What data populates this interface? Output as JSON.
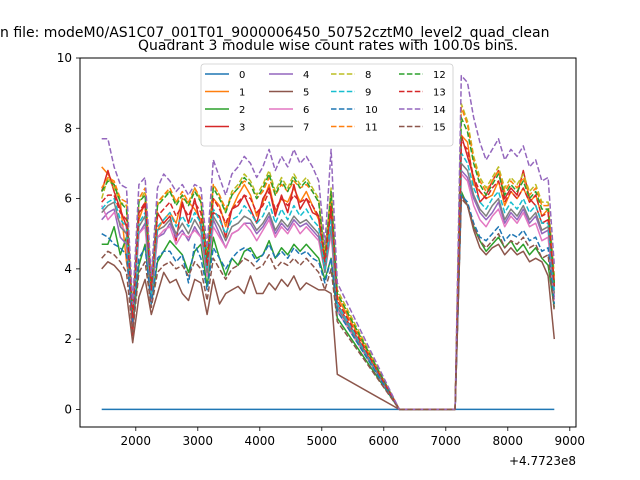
{
  "chart_data": {
    "type": "line",
    "suptitle": "n file: modeM0/AS1C07_001T01_9000006450_50752cztM0_level2_quad_clean",
    "title": "Quadrant 3 module wise count rates with 100.0s bins.",
    "xlabel": "",
    "ylabel": "",
    "offset_label": "+4.7723e8",
    "xlim": [
      1100,
      9100
    ],
    "ylim": [
      -0.5,
      10
    ],
    "xticks": [
      2000,
      3000,
      4000,
      5000,
      6000,
      7000,
      8000,
      9000
    ],
    "yticks": [
      0,
      2,
      4,
      6,
      8,
      10
    ],
    "grid": false,
    "legend_position": "top-center",
    "legend_columns": 4,
    "active_x_start": 1450,
    "bin_width": 100,
    "n_active_bins": 48,
    "gap_x": [
      6250,
      7150
    ],
    "resume_x_start": 7250,
    "n_resume_bins": 16,
    "series": [
      {
        "name": "0",
        "color": "#1f77b4",
        "dash": "solid",
        "values": [
          0,
          0,
          0,
          0,
          0,
          0,
          0,
          0,
          0,
          0,
          0,
          0,
          0,
          0,
          0,
          0,
          0,
          0,
          0,
          0,
          0,
          0,
          0,
          0,
          0,
          0,
          0,
          0,
          0,
          0,
          0,
          0,
          0,
          0,
          0,
          0,
          0,
          0,
          0,
          0,
          0,
          0,
          0,
          0,
          0,
          0,
          0,
          0,
          0,
          0,
          0,
          0,
          0,
          0,
          0,
          0,
          0,
          0,
          0,
          0,
          0,
          0,
          0,
          0
        ]
      },
      {
        "name": "1",
        "color": "#ff7f0e",
        "dash": "solid",
        "values": [
          6.9,
          6.7,
          6.4,
          5.9,
          4.2,
          3.0,
          5.4,
          5.9,
          3.5,
          5.1,
          5.4,
          5.6,
          5.3,
          6.0,
          5.9,
          5.7,
          5.4,
          4.0,
          6.0,
          5.8,
          5.2,
          5.7,
          6.1,
          6.4,
          6.1,
          5.5,
          5.9,
          6.4,
          5.6,
          6.0,
          5.9,
          6.3,
          5.9,
          6.2,
          5.8,
          5.4,
          4.2,
          5.9,
          3.2,
          0,
          0,
          0,
          0,
          0,
          0,
          0,
          0,
          0,
          7.8,
          7.6,
          6.4,
          6.2,
          6.0,
          6.1,
          6.5,
          5.8,
          6.2,
          6.0,
          6.3,
          5.9,
          6.1,
          5.5,
          5.7,
          3.6
        ]
      },
      {
        "name": "2",
        "color": "#2ca02c",
        "dash": "solid",
        "values": [
          4.7,
          4.7,
          5.2,
          4.4,
          4.9,
          2.3,
          4.1,
          4.7,
          3.0,
          4.2,
          4.5,
          4.8,
          4.6,
          4.4,
          3.9,
          4.5,
          4.7,
          3.5,
          4.9,
          4.3,
          3.8,
          4.3,
          4.1,
          4.5,
          4.6,
          4.3,
          4.4,
          4.8,
          4.3,
          4.6,
          4.4,
          4.7,
          4.5,
          4.7,
          4.5,
          4.3,
          3.7,
          4.3,
          2.6,
          0,
          0,
          0,
          0,
          0,
          0,
          0,
          0,
          0,
          6.2,
          5.8,
          5.2,
          4.8,
          4.5,
          4.7,
          4.9,
          4.6,
          4.8,
          4.5,
          4.7,
          4.4,
          4.6,
          4.3,
          4.1,
          2.9
        ]
      },
      {
        "name": "3",
        "color": "#d62728",
        "dash": "solid",
        "values": [
          6.2,
          6.8,
          6.2,
          5.7,
          5.2,
          2.1,
          5.6,
          5.8,
          3.3,
          5.6,
          5.3,
          5.5,
          4.8,
          5.9,
          5.3,
          6.0,
          5.2,
          4.1,
          5.6,
          5.5,
          4.9,
          5.7,
          5.8,
          6.1,
          5.7,
          5.3,
          6.0,
          6.3,
          5.5,
          6.1,
          5.6,
          6.4,
          5.7,
          6.0,
          5.6,
          5.5,
          4.1,
          5.7,
          3.0,
          0,
          0,
          0,
          0,
          0,
          0,
          0,
          0,
          0,
          7.8,
          7.2,
          6.6,
          5.9,
          6.1,
          6.5,
          6.8,
          6.0,
          6.3,
          6.1,
          6.8,
          6.0,
          5.8,
          5.3,
          5.4,
          3.5
        ]
      },
      {
        "name": "4",
        "color": "#9467bd",
        "dash": "solid",
        "values": [
          5.4,
          5.6,
          5.7,
          4.9,
          4.7,
          2.4,
          5.0,
          5.3,
          3.2,
          4.9,
          5.0,
          5.3,
          4.9,
          5.1,
          4.8,
          5.2,
          4.9,
          3.8,
          5.4,
          5.0,
          4.6,
          5.0,
          5.1,
          5.3,
          5.3,
          5.0,
          5.2,
          5.5,
          5.0,
          5.3,
          5.1,
          5.4,
          5.2,
          5.3,
          5.1,
          4.9,
          3.9,
          5.1,
          2.9,
          0,
          0,
          0,
          0,
          0,
          0,
          0,
          0,
          0,
          6.8,
          6.6,
          6.0,
          5.6,
          5.4,
          5.6,
          5.9,
          5.3,
          5.6,
          5.4,
          5.7,
          5.3,
          5.5,
          5.0,
          5.1,
          3.2
        ]
      },
      {
        "name": "5",
        "color": "#8c564b",
        "dash": "solid",
        "values": [
          4.0,
          4.2,
          4.1,
          3.9,
          3.3,
          1.9,
          3.2,
          3.7,
          2.7,
          3.3,
          3.9,
          3.6,
          3.7,
          3.3,
          3.1,
          3.7,
          3.6,
          2.7,
          3.7,
          3.0,
          3.3,
          3.4,
          3.5,
          3.3,
          3.8,
          3.3,
          3.3,
          3.6,
          3.4,
          3.7,
          3.5,
          3.8,
          3.4,
          3.6,
          3.5,
          3.4,
          3.4,
          3.3,
          1.0,
          0,
          0,
          0,
          0,
          0,
          0,
          0,
          0,
          0,
          6.1,
          5.8,
          5.1,
          4.6,
          4.4,
          4.6,
          4.7,
          4.4,
          4.6,
          4.4,
          4.5,
          4.2,
          4.3,
          4.2,
          3.8,
          2.0
        ]
      },
      {
        "name": "6",
        "color": "#e377c2",
        "dash": "solid",
        "values": [
          5.8,
          5.4,
          5.6,
          5.3,
          5.0,
          2.6,
          5.0,
          5.2,
          3.1,
          4.9,
          5.1,
          5.2,
          4.7,
          5.0,
          4.9,
          5.1,
          4.9,
          3.8,
          5.2,
          4.9,
          4.6,
          5.0,
          5.1,
          5.3,
          5.1,
          4.8,
          5.1,
          5.4,
          4.9,
          5.2,
          5.0,
          5.3,
          5.0,
          5.2,
          5.0,
          4.8,
          3.9,
          5.0,
          2.8,
          0,
          0,
          0,
          0,
          0,
          0,
          0,
          0,
          0,
          6.7,
          6.5,
          5.8,
          5.4,
          5.2,
          5.5,
          5.7,
          5.2,
          5.5,
          5.3,
          5.6,
          5.2,
          5.3,
          4.8,
          4.9,
          3.1
        ]
      },
      {
        "name": "7",
        "color": "#7f7f7f",
        "dash": "solid",
        "values": [
          5.6,
          5.8,
          5.9,
          5.2,
          5.0,
          2.5,
          5.2,
          5.5,
          3.2,
          5.1,
          5.2,
          5.4,
          5.0,
          5.3,
          5.0,
          5.4,
          5.1,
          3.9,
          5.5,
          5.2,
          4.8,
          5.2,
          5.3,
          5.5,
          5.4,
          5.1,
          5.3,
          5.6,
          5.1,
          5.4,
          5.2,
          5.5,
          5.3,
          5.4,
          5.2,
          5.0,
          3.9,
          5.2,
          2.9,
          0,
          0,
          0,
          0,
          0,
          0,
          0,
          0,
          0,
          7.0,
          6.8,
          6.1,
          5.7,
          5.5,
          5.8,
          6.0,
          5.4,
          5.7,
          5.5,
          5.8,
          5.4,
          5.6,
          5.1,
          5.2,
          3.3
        ]
      },
      {
        "name": "8",
        "color": "#bcbd22",
        "dash": "dashed",
        "values": [
          6.0,
          6.6,
          6.3,
          5.9,
          5.8,
          2.7,
          5.9,
          6.2,
          3.6,
          5.8,
          6.1,
          6.2,
          5.9,
          6.1,
          5.8,
          6.3,
          5.9,
          4.3,
          6.4,
          6.1,
          5.6,
          6.2,
          6.4,
          6.7,
          6.5,
          6.1,
          6.4,
          6.8,
          6.2,
          6.6,
          6.3,
          6.7,
          6.4,
          6.6,
          6.3,
          6.0,
          4.4,
          6.3,
          3.4,
          0,
          0,
          0,
          0,
          0,
          0,
          0,
          0,
          0,
          8.7,
          8.2,
          7.2,
          6.6,
          6.3,
          6.6,
          6.9,
          6.3,
          6.6,
          6.4,
          6.7,
          6.2,
          6.4,
          5.9,
          5.9,
          3.8
        ]
      },
      {
        "name": "9",
        "color": "#17becf",
        "dash": "dashed",
        "values": [
          5.7,
          5.9,
          6.0,
          5.4,
          5.2,
          2.6,
          5.3,
          5.6,
          3.3,
          5.2,
          5.4,
          5.6,
          5.2,
          5.5,
          5.2,
          5.6,
          5.3,
          4.0,
          5.7,
          5.4,
          5.0,
          5.4,
          5.5,
          5.8,
          5.6,
          5.3,
          5.5,
          5.9,
          5.3,
          5.7,
          5.4,
          5.8,
          5.5,
          5.7,
          5.4,
          5.2,
          4.0,
          5.4,
          3.0,
          0,
          0,
          0,
          0,
          0,
          0,
          0,
          0,
          0,
          7.3,
          7.0,
          6.3,
          5.9,
          5.7,
          6.0,
          6.2,
          5.6,
          5.9,
          5.7,
          6.0,
          5.6,
          5.8,
          5.3,
          5.3,
          3.4
        ]
      },
      {
        "name": "10",
        "color": "#1f77b4",
        "dash": "dashed",
        "values": [
          5.0,
          4.9,
          4.7,
          4.6,
          4.4,
          2.5,
          4.3,
          4.6,
          3.0,
          4.3,
          4.5,
          4.5,
          4.2,
          4.4,
          3.6,
          4.7,
          4.3,
          3.4,
          4.6,
          4.3,
          4.0,
          4.3,
          4.5,
          4.6,
          4.5,
          4.2,
          4.4,
          4.7,
          4.3,
          4.5,
          4.3,
          4.6,
          4.4,
          4.5,
          4.3,
          4.2,
          3.6,
          4.3,
          2.8,
          0,
          0,
          0,
          0,
          0,
          0,
          0,
          0,
          0,
          6.1,
          5.9,
          5.3,
          4.9,
          4.8,
          5.0,
          5.2,
          4.8,
          5.0,
          4.9,
          5.1,
          4.8,
          4.9,
          4.5,
          4.6,
          3.0
        ]
      },
      {
        "name": "11",
        "color": "#ff7f0e",
        "dash": "dashed",
        "values": [
          6.3,
          6.6,
          6.5,
          6.0,
          5.9,
          2.8,
          6.0,
          6.3,
          3.6,
          5.9,
          6.1,
          6.3,
          5.9,
          6.2,
          5.9,
          6.3,
          6.0,
          4.4,
          6.4,
          6.1,
          5.7,
          6.1,
          6.3,
          6.5,
          6.4,
          6.0,
          6.2,
          6.6,
          6.1,
          6.4,
          6.2,
          6.5,
          6.3,
          6.4,
          6.2,
          5.9,
          4.4,
          6.2,
          3.3,
          0,
          0,
          0,
          0,
          0,
          0,
          0,
          0,
          0,
          8.6,
          8.1,
          7.1,
          6.5,
          6.2,
          6.5,
          6.8,
          6.2,
          6.5,
          6.3,
          6.6,
          6.1,
          6.3,
          5.8,
          5.8,
          3.7
        ]
      },
      {
        "name": "12",
        "color": "#2ca02c",
        "dash": "dashed",
        "values": [
          6.2,
          6.5,
          6.4,
          5.9,
          5.7,
          2.7,
          5.9,
          6.1,
          3.5,
          5.8,
          6.0,
          6.2,
          5.8,
          6.1,
          5.8,
          6.2,
          5.9,
          4.3,
          6.3,
          6.0,
          5.6,
          6.1,
          6.3,
          6.6,
          6.4,
          6.0,
          6.3,
          6.7,
          6.1,
          6.5,
          6.2,
          6.6,
          6.3,
          6.5,
          6.2,
          5.9,
          4.3,
          6.2,
          3.3,
          0,
          0,
          0,
          0,
          0,
          0,
          0,
          0,
          0,
          8.3,
          7.9,
          7.0,
          6.4,
          6.1,
          6.4,
          6.7,
          6.1,
          6.4,
          6.2,
          6.5,
          6.0,
          6.2,
          5.7,
          5.7,
          3.6
        ]
      },
      {
        "name": "13",
        "color": "#d62728",
        "dash": "dashed",
        "values": [
          5.9,
          6.1,
          6.1,
          5.6,
          5.4,
          2.6,
          5.6,
          5.9,
          3.4,
          5.5,
          5.7,
          5.9,
          5.5,
          5.8,
          5.5,
          5.9,
          5.6,
          4.1,
          6.0,
          5.7,
          5.3,
          5.7,
          5.9,
          6.1,
          6.0,
          5.6,
          5.8,
          6.2,
          5.7,
          6.0,
          5.8,
          6.1,
          5.9,
          6.0,
          5.8,
          5.5,
          4.2,
          5.8,
          3.1,
          0,
          0,
          0,
          0,
          0,
          0,
          0,
          0,
          0,
          7.6,
          7.4,
          6.6,
          6.2,
          6.0,
          6.3,
          6.5,
          5.9,
          6.2,
          6.0,
          6.3,
          5.9,
          6.1,
          5.5,
          5.6,
          3.5
        ]
      },
      {
        "name": "14",
        "color": "#9467bd",
        "dash": "dashed",
        "values": [
          7.7,
          7.7,
          6.9,
          6.4,
          6.3,
          3.0,
          6.4,
          6.6,
          3.8,
          6.3,
          6.7,
          6.5,
          6.2,
          6.4,
          6.1,
          6.4,
          6.3,
          4.6,
          7.1,
          6.6,
          6.1,
          6.7,
          6.9,
          7.2,
          7.0,
          6.6,
          6.9,
          7.4,
          6.8,
          7.2,
          6.9,
          7.4,
          7.0,
          7.2,
          6.9,
          6.5,
          4.7,
          7.4,
          3.6,
          0,
          0,
          0,
          0,
          0,
          0,
          0,
          0,
          0,
          9.5,
          9.3,
          8.3,
          7.6,
          7.1,
          7.4,
          7.7,
          7.1,
          7.4,
          7.2,
          7.5,
          6.9,
          7.1,
          6.5,
          6.6,
          4.1
        ]
      },
      {
        "name": "15",
        "color": "#8c564b",
        "dash": "dashed",
        "values": [
          4.3,
          4.5,
          4.4,
          4.2,
          3.9,
          2.2,
          3.9,
          4.2,
          2.9,
          3.9,
          4.1,
          4.2,
          4.0,
          4.1,
          3.8,
          4.2,
          4.0,
          3.1,
          4.3,
          4.0,
          3.7,
          4.0,
          4.1,
          4.3,
          4.2,
          4.0,
          4.1,
          4.4,
          4.0,
          4.2,
          4.1,
          4.3,
          4.1,
          4.3,
          4.1,
          3.9,
          3.4,
          4.0,
          2.5,
          0,
          0,
          0,
          0,
          0,
          0,
          0,
          0,
          0,
          6.0,
          5.8,
          5.2,
          4.8,
          4.6,
          4.8,
          5.0,
          4.6,
          4.8,
          4.7,
          4.9,
          4.6,
          4.7,
          4.3,
          4.4,
          2.8
        ]
      }
    ]
  }
}
